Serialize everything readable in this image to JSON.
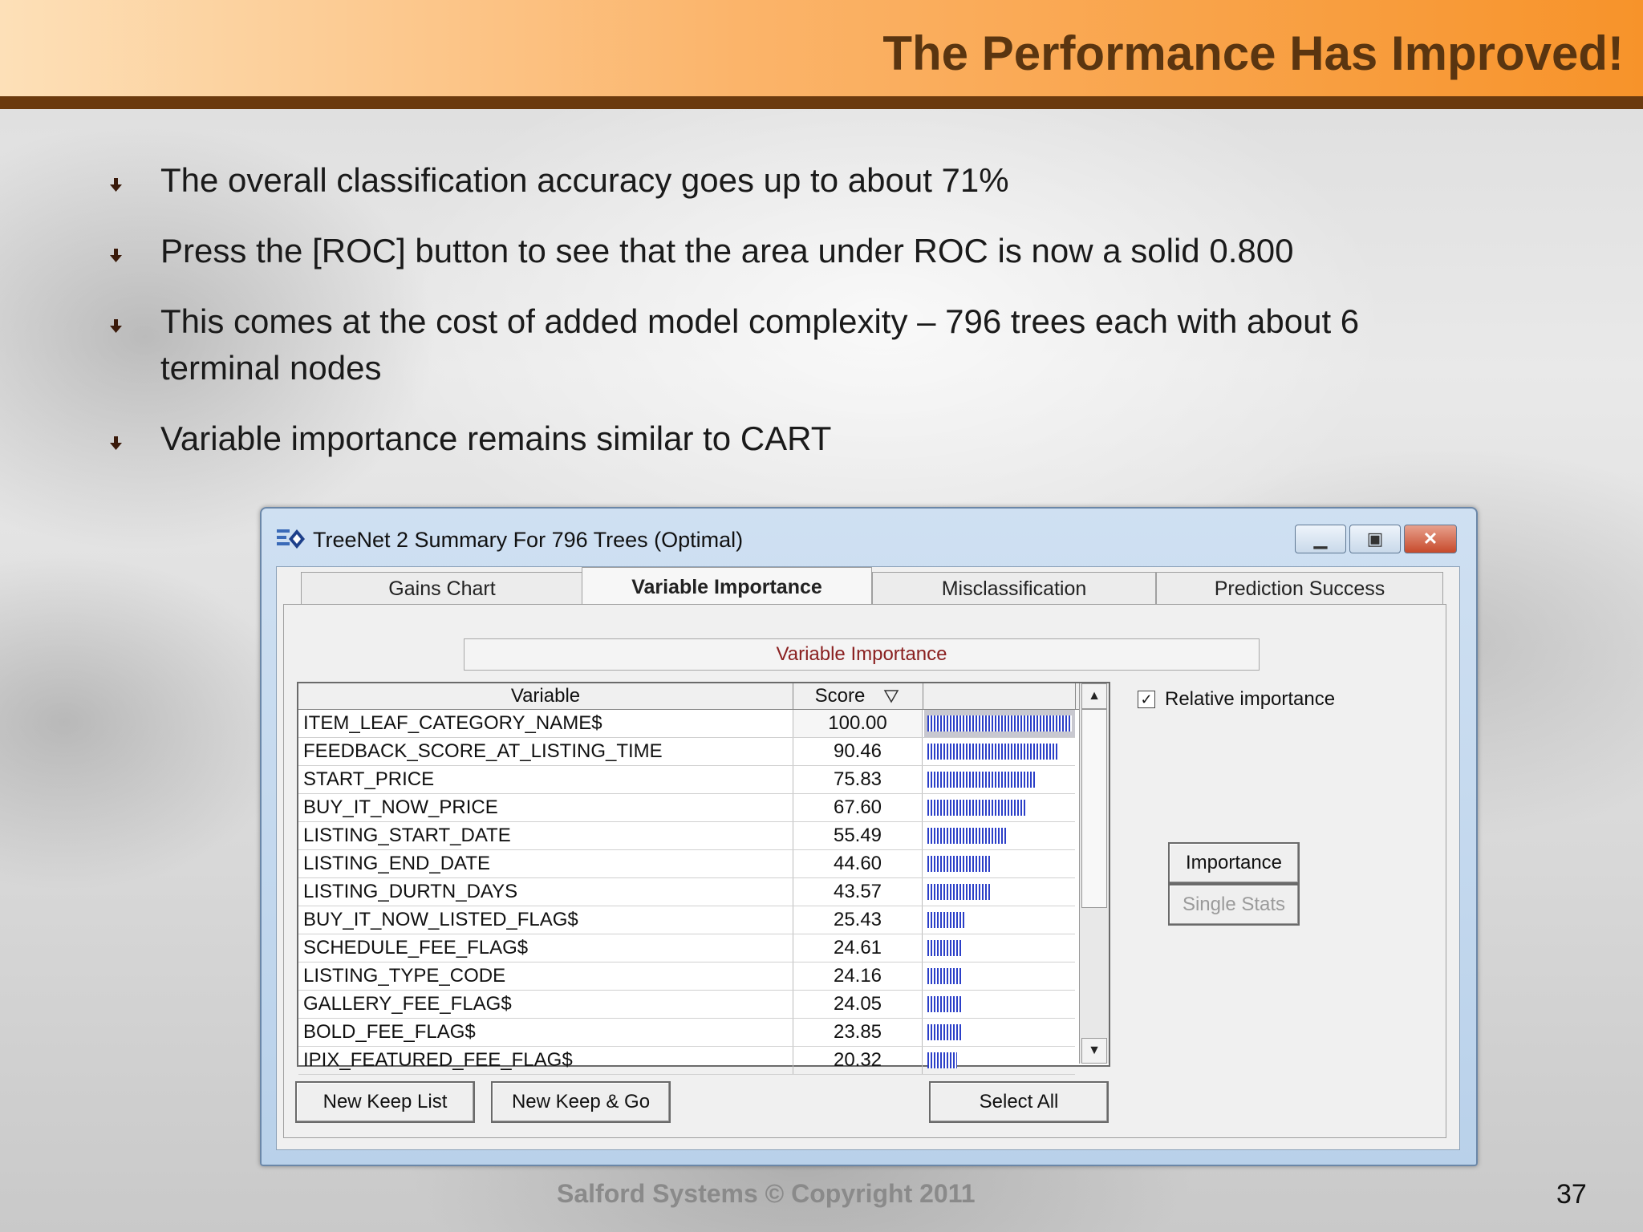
{
  "slide": {
    "title": "The Performance Has Improved!",
    "bullets": [
      "The overall classification accuracy goes up to about 71%",
      "Press the [ROC] button to see that the area under ROC is now a solid 0.800",
      "This comes at the cost of added model complexity – 796 trees each with about 6 terminal nodes",
      "Variable importance remains similar to CART"
    ],
    "footer": "Salford Systems   © Copyright 2011",
    "page_number": "37"
  },
  "colors": {
    "header_start": "#fde0b8",
    "header_end": "#f7932a",
    "title": "#5a3510",
    "bar": "#2b3fc8"
  },
  "dialog": {
    "title": "TreeNet 2 Summary For 796 Trees (Optimal)",
    "icon": "treenet-app-icon",
    "tabs": [
      {
        "label": "Gains Chart",
        "active": false
      },
      {
        "label": "Variable Importance",
        "active": true
      },
      {
        "label": "Misclassification",
        "active": false
      },
      {
        "label": "Prediction Success",
        "active": false
      }
    ],
    "panel_heading": "Variable Importance",
    "table": {
      "headers": {
        "variable": "Variable",
        "score": "Score"
      },
      "sort_icon": "sort-descending-icon",
      "rows": [
        {
          "variable": "ITEM_LEAF_CATEGORY_NAME$",
          "score": "100.00",
          "value": 100.0
        },
        {
          "variable": "FEEDBACK_SCORE_AT_LISTING_TIME",
          "score": "90.46",
          "value": 90.46
        },
        {
          "variable": "START_PRICE",
          "score": "75.83",
          "value": 75.83
        },
        {
          "variable": "BUY_IT_NOW_PRICE",
          "score": "67.60",
          "value": 67.6
        },
        {
          "variable": "LISTING_START_DATE",
          "score": "55.49",
          "value": 55.49
        },
        {
          "variable": "LISTING_END_DATE",
          "score": "44.60",
          "value": 44.6
        },
        {
          "variable": "LISTING_DURTN_DAYS",
          "score": "43.57",
          "value": 43.57
        },
        {
          "variable": "BUY_IT_NOW_LISTED_FLAG$",
          "score": "25.43",
          "value": 25.43
        },
        {
          "variable": "SCHEDULE_FEE_FLAG$",
          "score": "24.61",
          "value": 24.61
        },
        {
          "variable": "LISTING_TYPE_CODE",
          "score": "24.16",
          "value": 24.16
        },
        {
          "variable": "GALLERY_FEE_FLAG$",
          "score": "24.05",
          "value": 24.05
        },
        {
          "variable": "BOLD_FEE_FLAG$",
          "score": "23.85",
          "value": 23.85
        },
        {
          "variable": "IPIX_FEATURED_FEE_FLAG$",
          "score": "20.32",
          "value": 20.32
        }
      ]
    },
    "relative_importance": {
      "label": "Relative importance",
      "checked": true
    },
    "buttons": {
      "importance": "Importance",
      "single_stats": "Single Stats",
      "new_keep_list": "New Keep List",
      "new_keep_go": "New Keep & Go",
      "select_all": "Select All"
    }
  }
}
